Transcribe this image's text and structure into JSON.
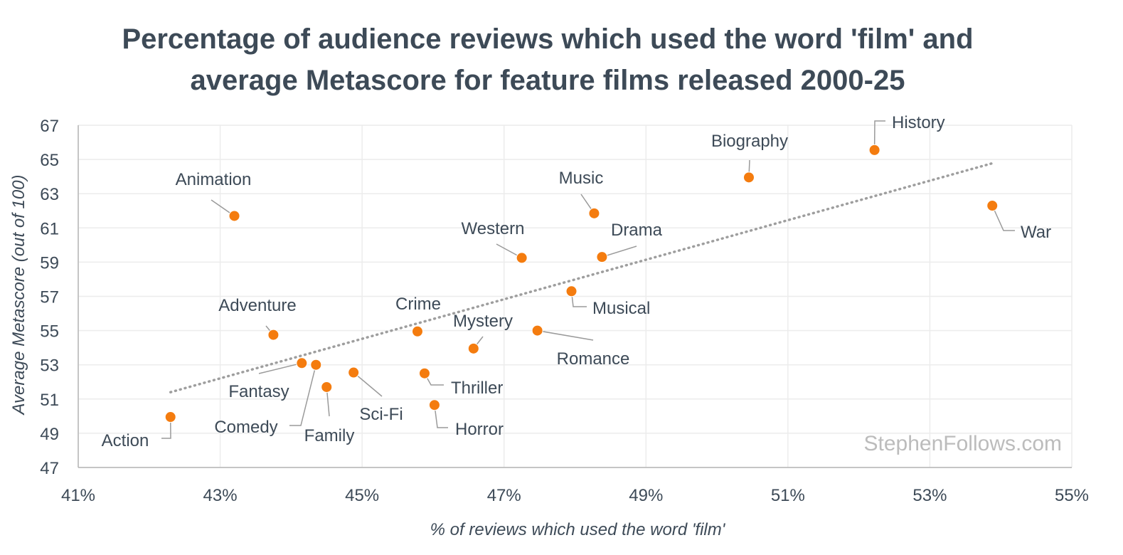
{
  "chart_data": {
    "type": "scatter",
    "title": "Percentage of audience reviews which used the word 'film' and average Metascore for feature films released 2000-25",
    "title_lines": [
      "Percentage of audience reviews which used the word 'film' and",
      "average Metascore for feature films released 2000-25"
    ],
    "xlabel": "% of reviews which used the word 'film'",
    "ylabel": "Average Metascore (out of 100)",
    "xlim": [
      41,
      55
    ],
    "ylim": [
      47,
      67
    ],
    "xticks": [
      41,
      43,
      45,
      47,
      49,
      51,
      53,
      55
    ],
    "xtick_labels": [
      "41%",
      "43%",
      "45%",
      "47%",
      "49%",
      "51%",
      "53%",
      "55%"
    ],
    "yticks": [
      47,
      49,
      51,
      53,
      55,
      57,
      59,
      61,
      63,
      65,
      67
    ],
    "ytick_labels": [
      "47",
      "49",
      "51",
      "53",
      "55",
      "57",
      "59",
      "61",
      "63",
      "65",
      "67"
    ],
    "grid": true,
    "point_color": "#f47c0f",
    "trendline": {
      "style": "dotted",
      "color": "#9e9e9e",
      "start": [
        42.3,
        51.4
      ],
      "end": [
        53.9,
        64.8
      ]
    },
    "watermark": "StephenFollows.com",
    "points": [
      {
        "name": "Animation",
        "x": 43.2,
        "y": 61.7
      },
      {
        "name": "Adventure",
        "x": 43.75,
        "y": 54.75
      },
      {
        "name": "Fantasy",
        "x": 44.15,
        "y": 53.1
      },
      {
        "name": "Comedy",
        "x": 44.35,
        "y": 53.0
      },
      {
        "name": "Family",
        "x": 44.5,
        "y": 51.7
      },
      {
        "name": "Action",
        "x": 42.3,
        "y": 49.95
      },
      {
        "name": "Sci-Fi",
        "x": 44.88,
        "y": 52.55
      },
      {
        "name": "Crime",
        "x": 45.78,
        "y": 54.95
      },
      {
        "name": "Thriller",
        "x": 45.88,
        "y": 52.5
      },
      {
        "name": "Horror",
        "x": 46.02,
        "y": 50.65
      },
      {
        "name": "Mystery",
        "x": 46.57,
        "y": 53.95
      },
      {
        "name": "Western",
        "x": 47.25,
        "y": 59.25
      },
      {
        "name": "Romance",
        "x": 47.47,
        "y": 55.0
      },
      {
        "name": "Musical",
        "x": 47.95,
        "y": 57.3
      },
      {
        "name": "Music",
        "x": 48.27,
        "y": 61.85
      },
      {
        "name": "Drama",
        "x": 48.38,
        "y": 59.3
      },
      {
        "name": "Biography",
        "x": 50.45,
        "y": 63.95
      },
      {
        "name": "History",
        "x": 52.22,
        "y": 65.55
      },
      {
        "name": "War",
        "x": 53.88,
        "y": 62.3
      }
    ]
  }
}
